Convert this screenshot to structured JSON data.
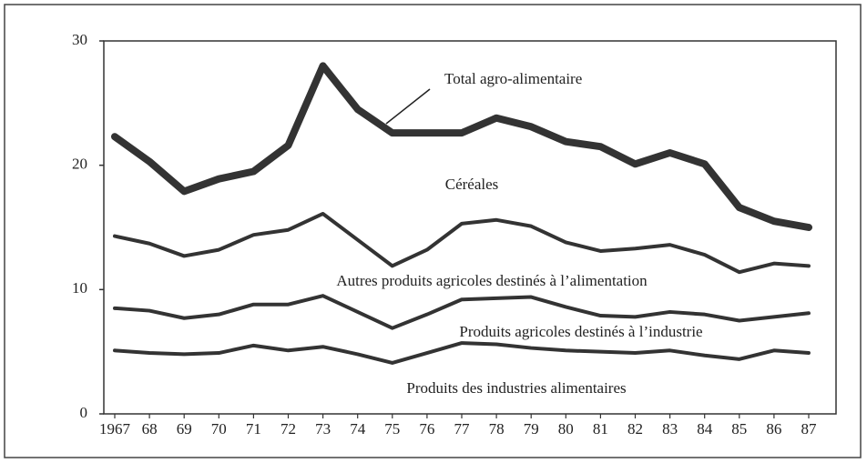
{
  "chart_data": {
    "type": "stacked_line",
    "annotation": "Total agro-alimentaire",
    "categories": [
      "1967",
      "68",
      "69",
      "70",
      "71",
      "72",
      "73",
      "74",
      "75",
      "76",
      "77",
      "78",
      "79",
      "80",
      "81",
      "82",
      "83",
      "84",
      "85",
      "86",
      "87"
    ],
    "series": [
      {
        "name": "Produits des industries alimentaires",
        "color": "#333333",
        "values": [
          5.1,
          4.9,
          4.8,
          4.9,
          5.5,
          5.1,
          5.4,
          4.8,
          4.1,
          4.9,
          5.7,
          5.6,
          5.3,
          5.1,
          5.0,
          4.9,
          5.1,
          4.7,
          4.4,
          5.1,
          4.9
        ]
      },
      {
        "name": "Produits agricoles destinés à l’industrie",
        "color": "#333333",
        "values": [
          3.4,
          3.4,
          2.9,
          3.1,
          3.3,
          3.7,
          4.1,
          3.4,
          2.8,
          3.1,
          3.5,
          3.7,
          4.1,
          3.5,
          2.9,
          2.9,
          3.1,
          3.3,
          3.1,
          2.7,
          3.2
        ]
      },
      {
        "name": "Autres produits agricoles destinés à l’alimentation",
        "color": "#333333",
        "values": [
          5.8,
          5.4,
          5.0,
          5.2,
          5.6,
          6.0,
          6.6,
          5.8,
          5.0,
          5.2,
          6.1,
          6.3,
          5.7,
          5.2,
          5.2,
          5.5,
          5.4,
          4.8,
          3.9,
          4.3,
          3.8
        ]
      },
      {
        "name": "Céréales",
        "color": "#333333",
        "values": [
          8.0,
          6.6,
          5.2,
          5.7,
          5.1,
          6.8,
          11.9,
          10.5,
          10.7,
          9.4,
          7.3,
          8.2,
          8.0,
          8.1,
          8.4,
          6.8,
          7.4,
          7.3,
          5.2,
          3.4,
          3.1
        ]
      }
    ],
    "ylim": [
      0,
      30
    ],
    "yticks": [
      0,
      10,
      20,
      30
    ]
  }
}
